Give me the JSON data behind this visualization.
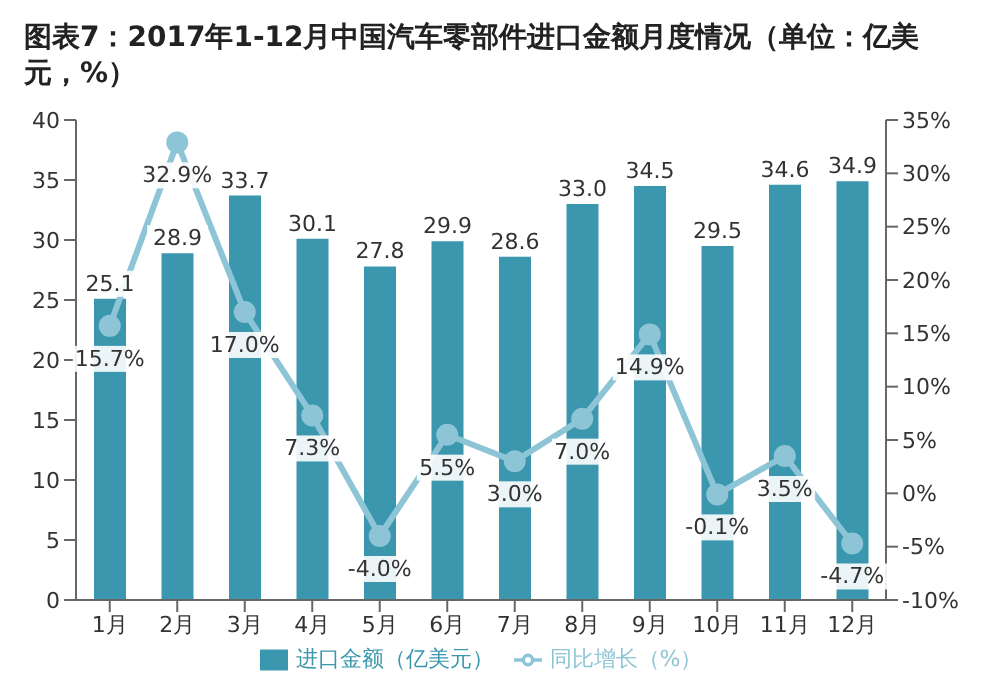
{
  "chart_data": {
    "type": "bar",
    "title": "图表7：2017年1-12月中国汽车零部件进口金额月度情况（单位：亿美元，%）",
    "categories": [
      "1月",
      "2月",
      "3月",
      "4月",
      "5月",
      "6月",
      "7月",
      "8月",
      "9月",
      "10月",
      "11月",
      "12月"
    ],
    "series": [
      {
        "name": "进口金额（亿美元）",
        "color": "#3a97ad",
        "values": [
          25.1,
          28.9,
          33.7,
          30.1,
          27.8,
          29.9,
          28.6,
          33.0,
          34.5,
          29.5,
          34.6,
          34.9
        ],
        "value_labels": [
          "25.1",
          "28.9",
          "33.7",
          "30.1",
          "27.8",
          "29.9",
          "28.6",
          "33.0",
          "34.5",
          "29.5",
          "34.6",
          "34.9"
        ]
      },
      {
        "name": "同比增长（%）",
        "type": "line",
        "axis": "y2",
        "color": "#8ec5d6",
        "values": [
          15.7,
          32.9,
          17.0,
          7.3,
          -4.0,
          5.5,
          3.0,
          7.0,
          14.9,
          -0.1,
          3.5,
          -4.7
        ],
        "value_labels": [
          "15.7%",
          "32.9%",
          "17.0%",
          "7.3%",
          "-4.0%",
          "5.5%",
          "3.0%",
          "7.0%",
          "14.9%",
          "-0.1%",
          "3.5%",
          "-4.7%"
        ]
      }
    ],
    "ylim": [
      0,
      40
    ],
    "yticks": [
      0,
      5,
      10,
      15,
      20,
      25,
      30,
      35,
      40
    ],
    "y2lim": [
      -10,
      35
    ],
    "y2ticks": [
      {
        "value": -10,
        "label": "-10%"
      },
      {
        "value": -5,
        "label": "-5%"
      },
      {
        "value": 0,
        "label": "0%"
      },
      {
        "value": 5,
        "label": "5%"
      },
      {
        "value": 10,
        "label": "10%"
      },
      {
        "value": 15,
        "label": "15%"
      },
      {
        "value": 20,
        "label": "20%"
      },
      {
        "value": 25,
        "label": "25%"
      },
      {
        "value": 30,
        "label": "30%"
      },
      {
        "value": 35,
        "label": "35%"
      }
    ],
    "marker": "circle",
    "legend": "bottom",
    "grid": false
  }
}
